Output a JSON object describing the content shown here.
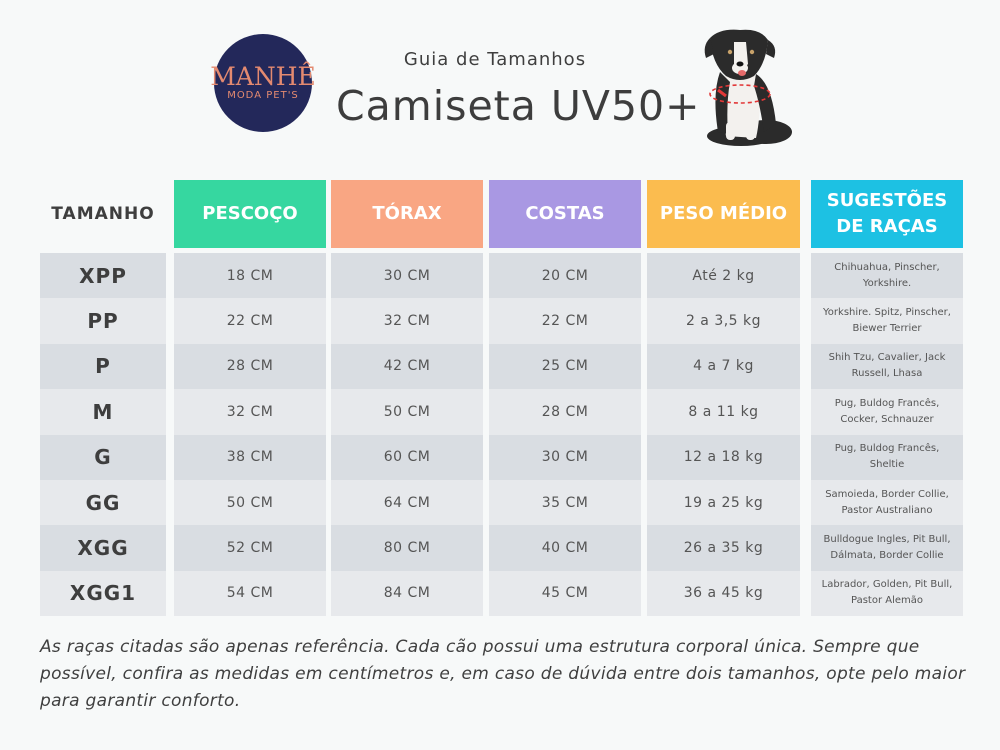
{
  "brand": {
    "name": "MANHÊ",
    "tagline": "MODA PET'S"
  },
  "header": {
    "subtitle": "Guia de Tamanhos",
    "title": "Camiseta UV50+"
  },
  "table": {
    "columns": [
      {
        "label": "TAMANHO",
        "color": ""
      },
      {
        "label": "PESCOÇO",
        "color": "#36d7a0"
      },
      {
        "label": "TÓRAX",
        "color": "#f9a683"
      },
      {
        "label": "COSTAS",
        "color": "#a998e3"
      },
      {
        "label": "PESO MÉDIO",
        "color": "#fbbc4f"
      },
      {
        "label": "SUGESTÕES DE RAÇAS",
        "color": "#1dc1e3"
      }
    ],
    "rows": [
      {
        "size": "XPP",
        "pescoco": "18 CM",
        "torax": "30 CM",
        "costas": "20 CM",
        "peso": "Até 2 kg",
        "racas": "Chihuahua, Pinscher, Yorkshire."
      },
      {
        "size": "PP",
        "pescoco": "22 CM",
        "torax": "32 CM",
        "costas": "22 CM",
        "peso": "2 a 3,5 kg",
        "racas": "Yorkshire. Spitz, Pinscher, Biewer Terrier"
      },
      {
        "size": "P",
        "pescoco": "28 CM",
        "torax": "42 CM",
        "costas": "25 CM",
        "peso": "4 a 7 kg",
        "racas": "Shih Tzu, Cavalier, Jack Russell, Lhasa"
      },
      {
        "size": "M",
        "pescoco": "32 CM",
        "torax": "50 CM",
        "costas": "28 CM",
        "peso": "8 a 11 kg",
        "racas": "Pug, Buldog Francês, Cocker, Schnauzer"
      },
      {
        "size": "G",
        "pescoco": "38 CM",
        "torax": "60 CM",
        "costas": "30 CM",
        "peso": "12 a 18 kg",
        "racas": "Pug, Buldog Francês, Sheltie"
      },
      {
        "size": "GG",
        "pescoco": "50 CM",
        "torax": "64 CM",
        "costas": "35 CM",
        "peso": "19 a 25 kg",
        "racas": "Samoieda, Border Collie, Pastor Australiano"
      },
      {
        "size": "XGG",
        "pescoco": "52 CM",
        "torax": "80 CM",
        "costas": "40 CM",
        "peso": "26 a 35 kg",
        "racas": "Bulldogue Ingles, Pit Bull, Dálmata, Border Collie"
      },
      {
        "size": "XGG1",
        "pescoco": "54 CM",
        "torax": "84 CM",
        "costas": "45 CM",
        "peso": "36 a 45 kg",
        "racas": "Labrador, Golden, Pit Bull, Pastor Alemão"
      }
    ]
  },
  "footer": {
    "note": "As raças citadas são apenas referência. Cada cão possui uma estrutura corporal única.  Sempre que possível, confira as medidas em centímetros e, em caso de dúvida entre dois tamanhos, opte pelo maior para garantir conforto."
  }
}
